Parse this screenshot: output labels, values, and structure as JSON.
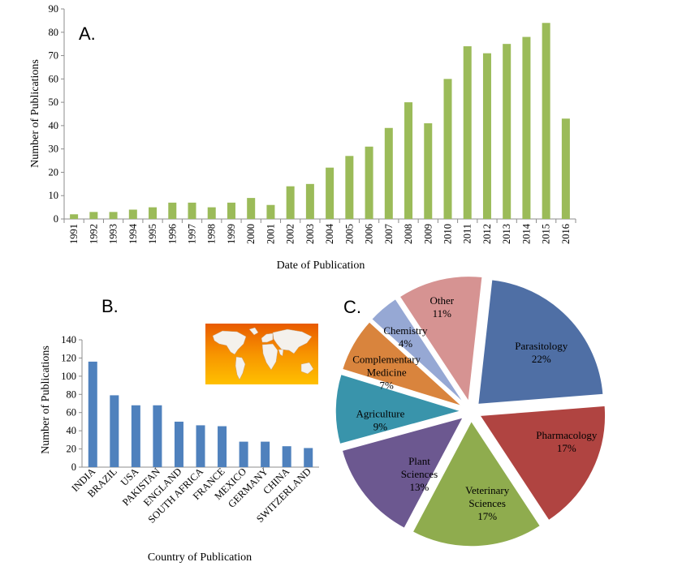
{
  "chart_data": [
    {
      "type": "bar",
      "panel_label": "A.",
      "title": "",
      "xlabel": "Date of Publication",
      "ylabel": "Number of Publications",
      "categories": [
        "1991",
        "1992",
        "1993",
        "1994",
        "1995",
        "1996",
        "1997",
        "1998",
        "1999",
        "2000",
        "2001",
        "2002",
        "2003",
        "2004",
        "2005",
        "2006",
        "2007",
        "2008",
        "2009",
        "2010",
        "2011",
        "2012",
        "2013",
        "2014",
        "2015",
        "2016"
      ],
      "values": [
        2,
        3,
        3,
        4,
        5,
        7,
        7,
        5,
        7,
        9,
        6,
        14,
        15,
        22,
        27,
        31,
        39,
        50,
        41,
        60,
        74,
        71,
        75,
        78,
        84,
        43
      ],
      "ylim": [
        0,
        90
      ],
      "yticks": [
        0,
        10,
        20,
        30,
        40,
        50,
        60,
        70,
        80,
        90
      ],
      "color": "#9bbb59",
      "grid": false
    },
    {
      "type": "bar",
      "panel_label": "B.",
      "title": "",
      "xlabel": "Country of Publication",
      "ylabel": "Number of Publications",
      "categories": [
        "INDIA",
        "BRAZIL",
        "USA",
        "PAKISTAN",
        "ENGLAND",
        "SOUTH AFRICA",
        "FRANCE",
        "MEXICO",
        "GERMANY",
        "CHINA",
        "SWITZERLAND"
      ],
      "values": [
        116,
        79,
        68,
        68,
        50,
        46,
        45,
        28,
        28,
        23,
        21
      ],
      "ylim": [
        0,
        140
      ],
      "yticks": [
        0,
        20,
        40,
        60,
        80,
        100,
        120,
        140
      ],
      "color": "#4f81bd",
      "grid": false
    },
    {
      "type": "pie",
      "panel_label": "C.",
      "title": "",
      "slices": [
        {
          "name": "Parasitology",
          "value": 22,
          "label": "22%",
          "color": "#4f6fa5"
        },
        {
          "name": "Pharmacology",
          "value": 17,
          "label": "17%",
          "color": "#b04441"
        },
        {
          "name": "Veterinary Sciences",
          "value": 17,
          "label": "17%",
          "color": "#8fac4e"
        },
        {
          "name": "Plant Sciences",
          "value": 13,
          "label": "13%",
          "color": "#6c5890"
        },
        {
          "name": "Agriculture",
          "value": 9,
          "label": "9%",
          "color": "#3994ab"
        },
        {
          "name": "Complementary Medicine",
          "value": 7,
          "label": "7%",
          "color": "#d9843d"
        },
        {
          "name": "Chemistry",
          "value": 4,
          "label": "4%",
          "color": "#96a8d4"
        },
        {
          "name": "Other",
          "value": 11,
          "label": "11%",
          "color": "#d69392"
        }
      ]
    }
  ]
}
